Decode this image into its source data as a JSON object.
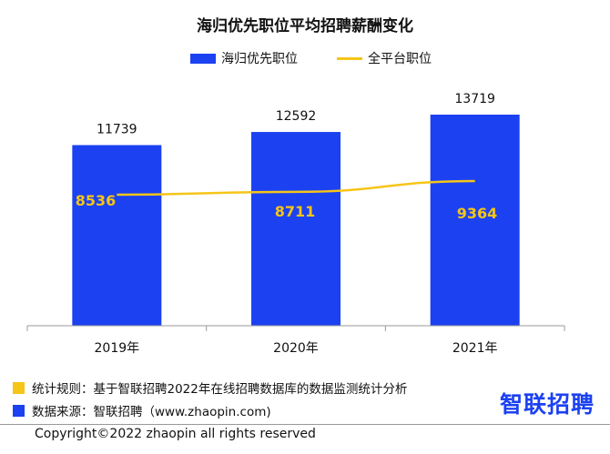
{
  "chart_data": {
    "type": "bar",
    "title": "海归优先职位平均招聘薪酬变化",
    "categories": [
      "2019年",
      "2020年",
      "2021年"
    ],
    "series": [
      {
        "name": "海归优先职位",
        "kind": "bar",
        "color": "#1c41f1",
        "values": [
          11739,
          12592,
          13719
        ]
      },
      {
        "name": "全平台职位",
        "kind": "line",
        "color": "#f5c518",
        "values": [
          8536,
          8711,
          9364
        ]
      }
    ],
    "ylim": [
      0,
      15714
    ],
    "grid": false,
    "legend": "top-center"
  },
  "footer": {
    "note_rule": "统计规则：基于智联招聘2022年在线招聘数据库的数据监测统计分析",
    "note_source": "数据来源：智联招聘（www.zhaopin.com)",
    "rule_color": "#f5c518",
    "source_color": "#1c41f1",
    "logo": "智联招聘",
    "copyright": "Copyright©2022 zhaopin all rights reserved"
  }
}
